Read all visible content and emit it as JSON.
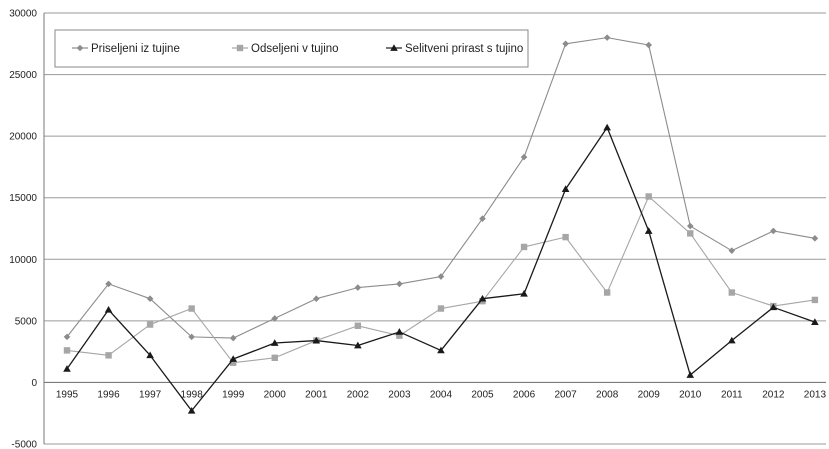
{
  "chart_data": {
    "type": "line",
    "x": [
      "1995",
      "1996",
      "1997",
      "1998",
      "1999",
      "2000",
      "2001",
      "2002",
      "2003",
      "2004",
      "2005",
      "2006",
      "2007",
      "2008",
      "2009",
      "2010",
      "2011",
      "2012",
      "2013"
    ],
    "ylim": [
      -5000,
      30000
    ],
    "yticks": [
      -5000,
      0,
      5000,
      10000,
      15000,
      20000,
      25000,
      30000
    ],
    "ytick_labels": [
      "-5000",
      "0",
      "5000",
      "10000",
      "15000",
      "20000",
      "25000",
      "30000"
    ],
    "grid": true,
    "legend_position": "top-left",
    "series": [
      {
        "name": "Priseljeni iz tujine",
        "marker": "diamond",
        "color": "#8c8c8c",
        "values": [
          3700,
          8000,
          6800,
          3700,
          3600,
          5200,
          6800,
          7700,
          8000,
          8600,
          13300,
          18300,
          27500,
          28000,
          27400,
          12700,
          10700,
          12300,
          11700
        ]
      },
      {
        "name": "Odseljeni v tujino",
        "marker": "square",
        "color": "#a6a6a6",
        "values": [
          2600,
          2200,
          4700,
          6000,
          1600,
          2000,
          3400,
          4600,
          3800,
          6000,
          6600,
          11000,
          11800,
          7300,
          15100,
          12100,
          7300,
          6200,
          6700
        ]
      },
      {
        "name": "Selitveni prirast s tujino",
        "marker": "triangle",
        "color": "#1a1a1a",
        "values": [
          1100,
          5900,
          2200,
          -2300,
          1900,
          3200,
          3400,
          3000,
          4100,
          2600,
          6800,
          7200,
          15700,
          20700,
          12300,
          600,
          3400,
          6100,
          4900
        ]
      }
    ]
  }
}
